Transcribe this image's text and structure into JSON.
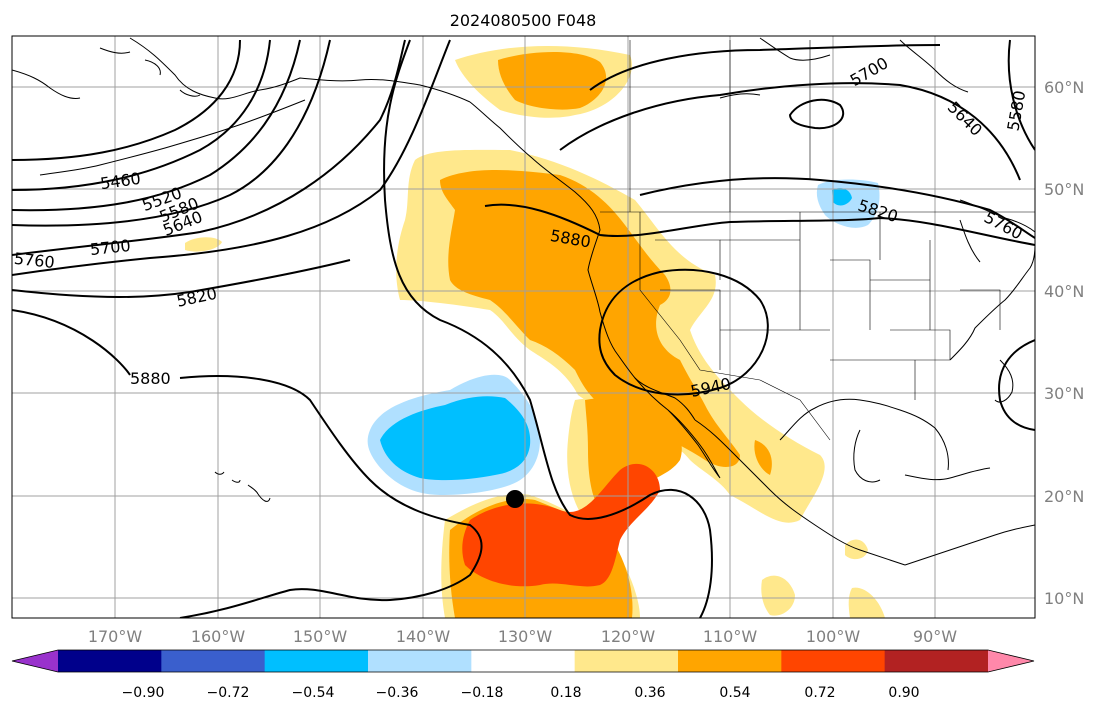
{
  "title": "2024080500 F048",
  "map": {
    "lon_labels": [
      "170°W",
      "160°W",
      "150°W",
      "140°W",
      "130°W",
      "120°W",
      "110°W",
      "100°W",
      "90°W"
    ],
    "lat_labels": [
      "60°N",
      "50°N",
      "40°N",
      "30°N",
      "20°N",
      "10°N"
    ],
    "height_contours": [
      "5460",
      "5520",
      "5580",
      "5640",
      "5700",
      "5760",
      "5820",
      "5880",
      "5880",
      "5940",
      "5700",
      "5640",
      "5580",
      "5820",
      "5760"
    ],
    "marker": "storm-center-dot",
    "colors": {
      "land_outline": "#000000",
      "gridline": "#a0a0a0"
    }
  },
  "colorbar": {
    "tick_labels": [
      "−0.90",
      "−0.72",
      "−0.54",
      "−0.36",
      "−0.18",
      "0.18",
      "0.36",
      "0.54",
      "0.72",
      "0.90"
    ],
    "colors": [
      "#9932cc",
      "#00008b",
      "#3a5fcd",
      "#00bfff",
      "#b0e0ff",
      "#ffffff",
      "#ffe88c",
      "#ffa500",
      "#ff4500",
      "#b22222",
      "#ff88aa"
    ]
  }
}
